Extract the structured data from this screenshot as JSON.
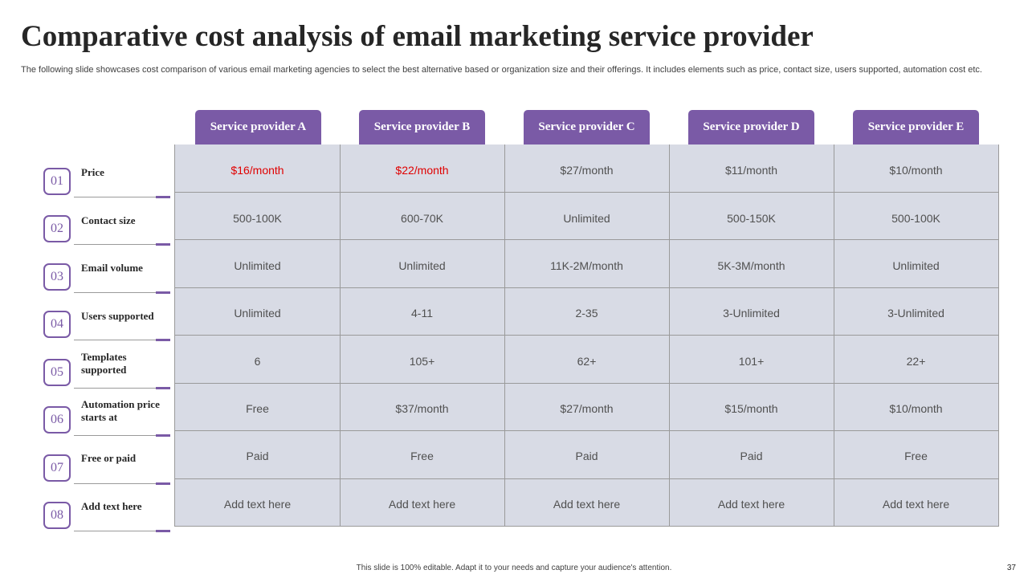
{
  "title": "Comparative cost analysis of email marketing service provider",
  "subtitle": "The following slide showcases cost comparison of various email marketing agencies to select the best alternative based or organization size and their offerings. It includes elements such as price, contact size, users supported, automation cost etc.",
  "colors": {
    "accent": "#7a5aa6",
    "table_bg": "#d8dbe5",
    "highlight_text": "#e00000"
  },
  "providers": [
    "Service provider A",
    "Service provider B",
    "Service provider C",
    "Service provider D",
    "Service provider E"
  ],
  "rows": [
    {
      "num": "01",
      "label": "Price",
      "values": [
        "$16/month",
        "$22/month",
        "$27/month",
        "$11/month",
        "$10/month"
      ]
    },
    {
      "num": "02",
      "label": "Contact size",
      "values": [
        "500-100K",
        "600-70K",
        "Unlimited",
        "500-150K",
        "500-100K"
      ]
    },
    {
      "num": "03",
      "label": "Email volume",
      "values": [
        "Unlimited",
        "Unlimited",
        "11K-2M/month",
        "5K-3M/month",
        "Unlimited"
      ]
    },
    {
      "num": "04",
      "label": "Users supported",
      "values": [
        "Unlimited",
        "4-11",
        "2-35",
        "3-Unlimited",
        "3-Unlimited"
      ]
    },
    {
      "num": "05",
      "label": "Templates supported",
      "values": [
        "6",
        "105+",
        "62+",
        "101+",
        "22+"
      ]
    },
    {
      "num": "06",
      "label": "Automation price starts at",
      "values": [
        "Free",
        "$37/month",
        "$27/month",
        "$15/month",
        "$10/month"
      ]
    },
    {
      "num": "07",
      "label": "Free or paid",
      "values": [
        "Paid",
        "Free",
        "Paid",
        "Paid",
        "Free"
      ]
    },
    {
      "num": "08",
      "label": "Add text here",
      "values": [
        "Add text here",
        "Add text here",
        "Add text here",
        "Add text here",
        "Add text here"
      ]
    }
  ],
  "footer": "This slide is 100% editable. Adapt it to your needs and capture your audience's attention.",
  "page_number": "37"
}
